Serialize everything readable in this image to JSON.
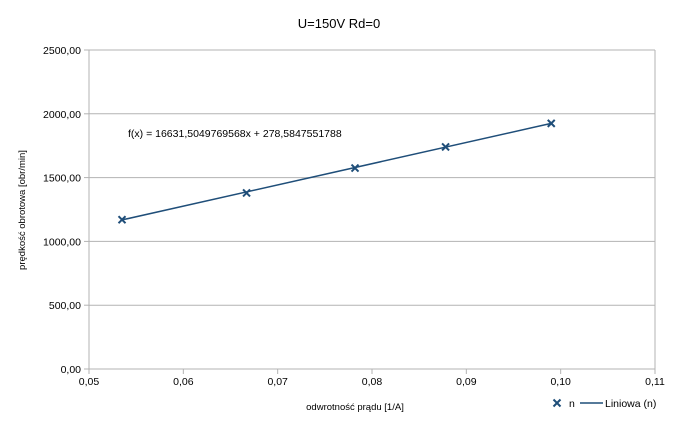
{
  "chart_data": {
    "type": "scatter",
    "title": "U=150V Rd=0",
    "xlabel": "odwrotność prądu [1/A]",
    "ylabel": "prędkość obrotowa [obr/min]",
    "xlim": [
      0.05,
      0.11
    ],
    "ylim": [
      0,
      2500
    ],
    "x_ticks": [
      "0,05",
      "0,06",
      "0,07",
      "0,08",
      "0,09",
      "0,10",
      "0,11"
    ],
    "y_ticks": [
      "0,00",
      "500,00",
      "1000,00",
      "1500,00",
      "2000,00",
      "2500,00"
    ],
    "grid": "horizontal",
    "series": [
      {
        "name": "n",
        "marker": "x",
        "color": "#1f4e79",
        "x": [
          0.0535,
          0.0667,
          0.0782,
          0.0878,
          0.099
        ],
        "y": [
          1170,
          1380,
          1575,
          1740,
          1925
        ]
      }
    ],
    "trendline": {
      "name": "Liniowa (n)",
      "type": "linear",
      "slope": 16631.5049769568,
      "intercept": 278.5847551788,
      "x_range": [
        0.0535,
        0.099
      ],
      "equation": "f(x) = 16631,5049769568x + 278,5847551788",
      "color": "#1f4e79"
    },
    "legend": {
      "position": "bottom-right",
      "entries": [
        "n",
        "Liniowa (n)"
      ]
    }
  }
}
